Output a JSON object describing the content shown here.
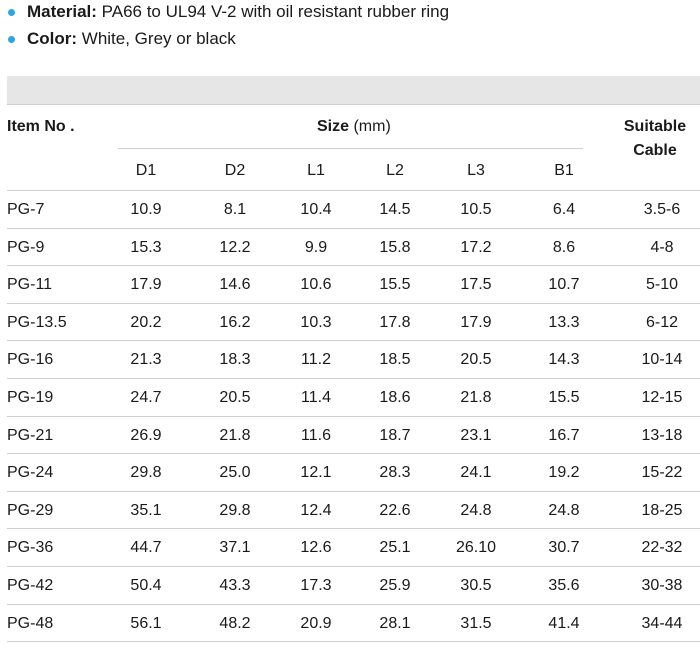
{
  "spec": {
    "material_label": "Material:",
    "material_value": "PA66 to UL94 V-2 with oil resistant rubber ring",
    "color_label": "Color:",
    "color_value": "White, Grey or black"
  },
  "table": {
    "item_header": "Item No .",
    "size_header": "Size",
    "size_unit": "(mm)",
    "cable_header_1": "Suitable",
    "cable_header_2": "Cable",
    "columns": [
      "D1",
      "D2",
      "L1",
      "L2",
      "L3",
      "B1"
    ],
    "rows": [
      {
        "item": "PG-7",
        "d1": "10.9",
        "d2": "8.1",
        "l1": "10.4",
        "l2": "14.5",
        "l3": "10.5",
        "b1": "6.4",
        "cable": "3.5-6"
      },
      {
        "item": "PG-9",
        "d1": "15.3",
        "d2": "12.2",
        "l1": "9.9",
        "l2": "15.8",
        "l3": "17.2",
        "b1": "8.6",
        "cable": "4-8"
      },
      {
        "item": "PG-11",
        "d1": "17.9",
        "d2": "14.6",
        "l1": "10.6",
        "l2": "15.5",
        "l3": "17.5",
        "b1": "10.7",
        "cable": "5-10"
      },
      {
        "item": "PG-13.5",
        "d1": "20.2",
        "d2": "16.2",
        "l1": "10.3",
        "l2": "17.8",
        "l3": "17.9",
        "b1": "13.3",
        "cable": "6-12"
      },
      {
        "item": "PG-16",
        "d1": "21.3",
        "d2": "18.3",
        "l1": "11.2",
        "l2": "18.5",
        "l3": "20.5",
        "b1": "14.3",
        "cable": "10-14"
      },
      {
        "item": "PG-19",
        "d1": "24.7",
        "d2": "20.5",
        "l1": "11.4",
        "l2": "18.6",
        "l3": "21.8",
        "b1": "15.5",
        "cable": "12-15"
      },
      {
        "item": "PG-21",
        "d1": "26.9",
        "d2": "21.8",
        "l1": "11.6",
        "l2": "18.7",
        "l3": "23.1",
        "b1": "16.7",
        "cable": "13-18"
      },
      {
        "item": "PG-24",
        "d1": "29.8",
        "d2": "25.0",
        "l1": "12.1",
        "l2": "28.3",
        "l3": "24.1",
        "b1": "19.2",
        "cable": "15-22"
      },
      {
        "item": "PG-29",
        "d1": "35.1",
        "d2": "29.8",
        "l1": "12.4",
        "l2": "22.6",
        "l3": "24.8",
        "b1": "24.8",
        "cable": "18-25"
      },
      {
        "item": "PG-36",
        "d1": "44.7",
        "d2": "37.1",
        "l1": "12.6",
        "l2": "25.1",
        "l3": "26.10",
        "b1": "30.7",
        "cable": "22-32"
      },
      {
        "item": "PG-42",
        "d1": "50.4",
        "d2": "43.3",
        "l1": "17.3",
        "l2": "25.9",
        "l3": "30.5",
        "b1": "35.6",
        "cable": "30-38"
      },
      {
        "item": "PG-48",
        "d1": "56.1",
        "d2": "48.2",
        "l1": "20.9",
        "l2": "28.1",
        "l3": "31.5",
        "b1": "41.4",
        "cable": "34-44"
      }
    ]
  }
}
